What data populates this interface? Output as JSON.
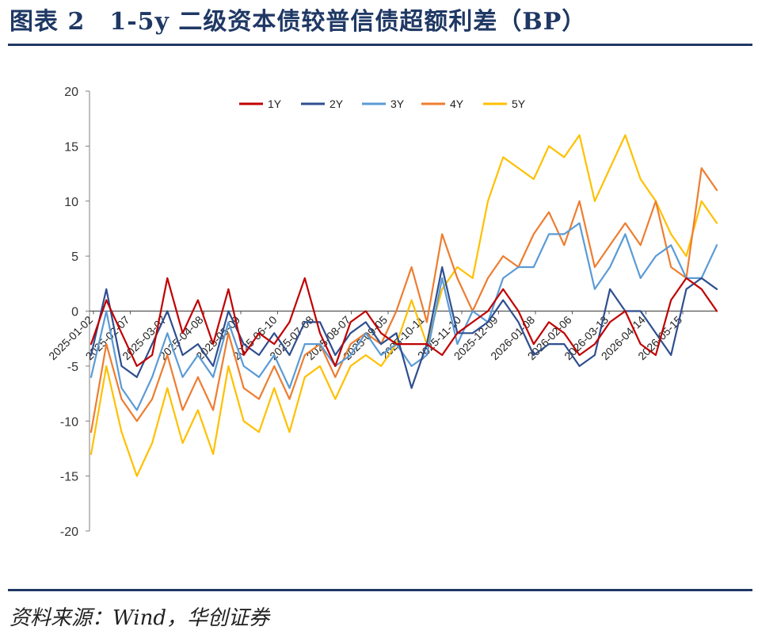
{
  "header": {
    "title": "图表 2　1-5y 二级资本债较普信债超额利差（BP）"
  },
  "footer": {
    "source": "资料来源：Wind，华创证券"
  },
  "colors": {
    "title": "#1f3864",
    "axis": "#7f7f7f",
    "series": [
      "#c00000",
      "#2f4f8f",
      "#5b9bd5",
      "#ed7d31",
      "#ffc000"
    ]
  },
  "chart_data": {
    "type": "line",
    "ylim": [
      -20,
      20
    ],
    "yticks": [
      20,
      15,
      10,
      5,
      0,
      -5,
      -10,
      -15,
      -20
    ],
    "xtick_labels": [
      "2025-01-02",
      "2025-02-07",
      "2025-03-07",
      "2025-04-08",
      "2025-05-09",
      "2025-06-10",
      "2025-07-08",
      "2025-08-07",
      "2025-09-05",
      "2025-10-11",
      "2025-11-10",
      "2025-12-09",
      "2026-01-08",
      "2026-02-06",
      "2026-03-13",
      "2026-04-14",
      "2026-05-15"
    ],
    "legend_position": "top",
    "grid": false,
    "series": [
      {
        "name": "1Y",
        "values": [
          -3,
          1,
          -2,
          -5,
          -4,
          3,
          -2,
          1,
          -3,
          2,
          -4,
          -2,
          -3,
          -1,
          3,
          -2,
          -5,
          -1,
          0,
          -2,
          -3,
          -3,
          -3,
          -4,
          -2,
          -1,
          0,
          2,
          0,
          -3,
          -1,
          -2,
          -4,
          -3,
          -1,
          0,
          -3,
          -4,
          1,
          3,
          2,
          0
        ]
      },
      {
        "name": "2Y",
        "values": [
          -4,
          2,
          -5,
          -6,
          -3,
          0,
          -4,
          -3,
          -5,
          0,
          -3,
          -4,
          -2,
          -4,
          -1,
          -1,
          -4,
          -2,
          -1,
          -3,
          -2,
          -7,
          -3,
          4,
          -2,
          -2,
          -1,
          1,
          -1,
          -4,
          -3,
          -3,
          -5,
          -4,
          2,
          0,
          0,
          -2,
          -4,
          2,
          3,
          2
        ]
      },
      {
        "name": "3Y",
        "values": [
          -6,
          0,
          -7,
          -9,
          -6,
          -2,
          -6,
          -4,
          -6,
          -1,
          -5,
          -6,
          -4,
          -7,
          -3,
          -3,
          -5,
          -4,
          -2,
          -4,
          -3,
          -5,
          -4,
          3,
          -3,
          0,
          -1,
          3,
          4,
          4,
          7,
          7,
          8,
          2,
          4,
          7,
          3,
          5,
          6,
          3,
          3,
          6
        ]
      },
      {
        "name": "4Y",
        "values": [
          -11,
          -3,
          -8,
          -10,
          -8,
          -4,
          -9,
          -6,
          -9,
          -2,
          -7,
          -8,
          -5,
          -8,
          -4,
          -3,
          -6,
          -3,
          -2,
          -3,
          0,
          4,
          -1,
          7,
          3,
          0,
          3,
          5,
          4,
          7,
          9,
          6,
          10,
          4,
          6,
          8,
          6,
          10,
          4,
          3,
          13,
          11
        ]
      },
      {
        "name": "5Y",
        "values": [
          -13,
          -5,
          -11,
          -15,
          -12,
          -7,
          -12,
          -9,
          -13,
          -5,
          -10,
          -11,
          -7,
          -11,
          -6,
          -5,
          -8,
          -5,
          -4,
          -5,
          -3,
          1,
          -3,
          2,
          4,
          3,
          10,
          14,
          13,
          12,
          15,
          14,
          16,
          10,
          13,
          16,
          12,
          10,
          7,
          5,
          10,
          8
        ]
      }
    ]
  }
}
